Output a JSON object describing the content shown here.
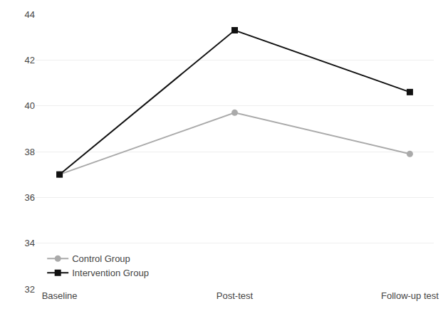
{
  "chart_data": {
    "type": "line",
    "categories": [
      "Baseline",
      "Post-test",
      "Follow-up test"
    ],
    "series": [
      {
        "name": "Control Group",
        "color": "#aaaaaa",
        "marker": "circle",
        "values": [
          37.0,
          39.7,
          37.9
        ]
      },
      {
        "name": "Intervention Group",
        "color": "#111111",
        "marker": "square",
        "values": [
          37.0,
          43.3,
          40.6
        ]
      }
    ],
    "ylim": [
      32,
      44
    ],
    "yticks": [
      32,
      34,
      36,
      38,
      40,
      42,
      44
    ],
    "grid": true,
    "legend": "lower left"
  }
}
